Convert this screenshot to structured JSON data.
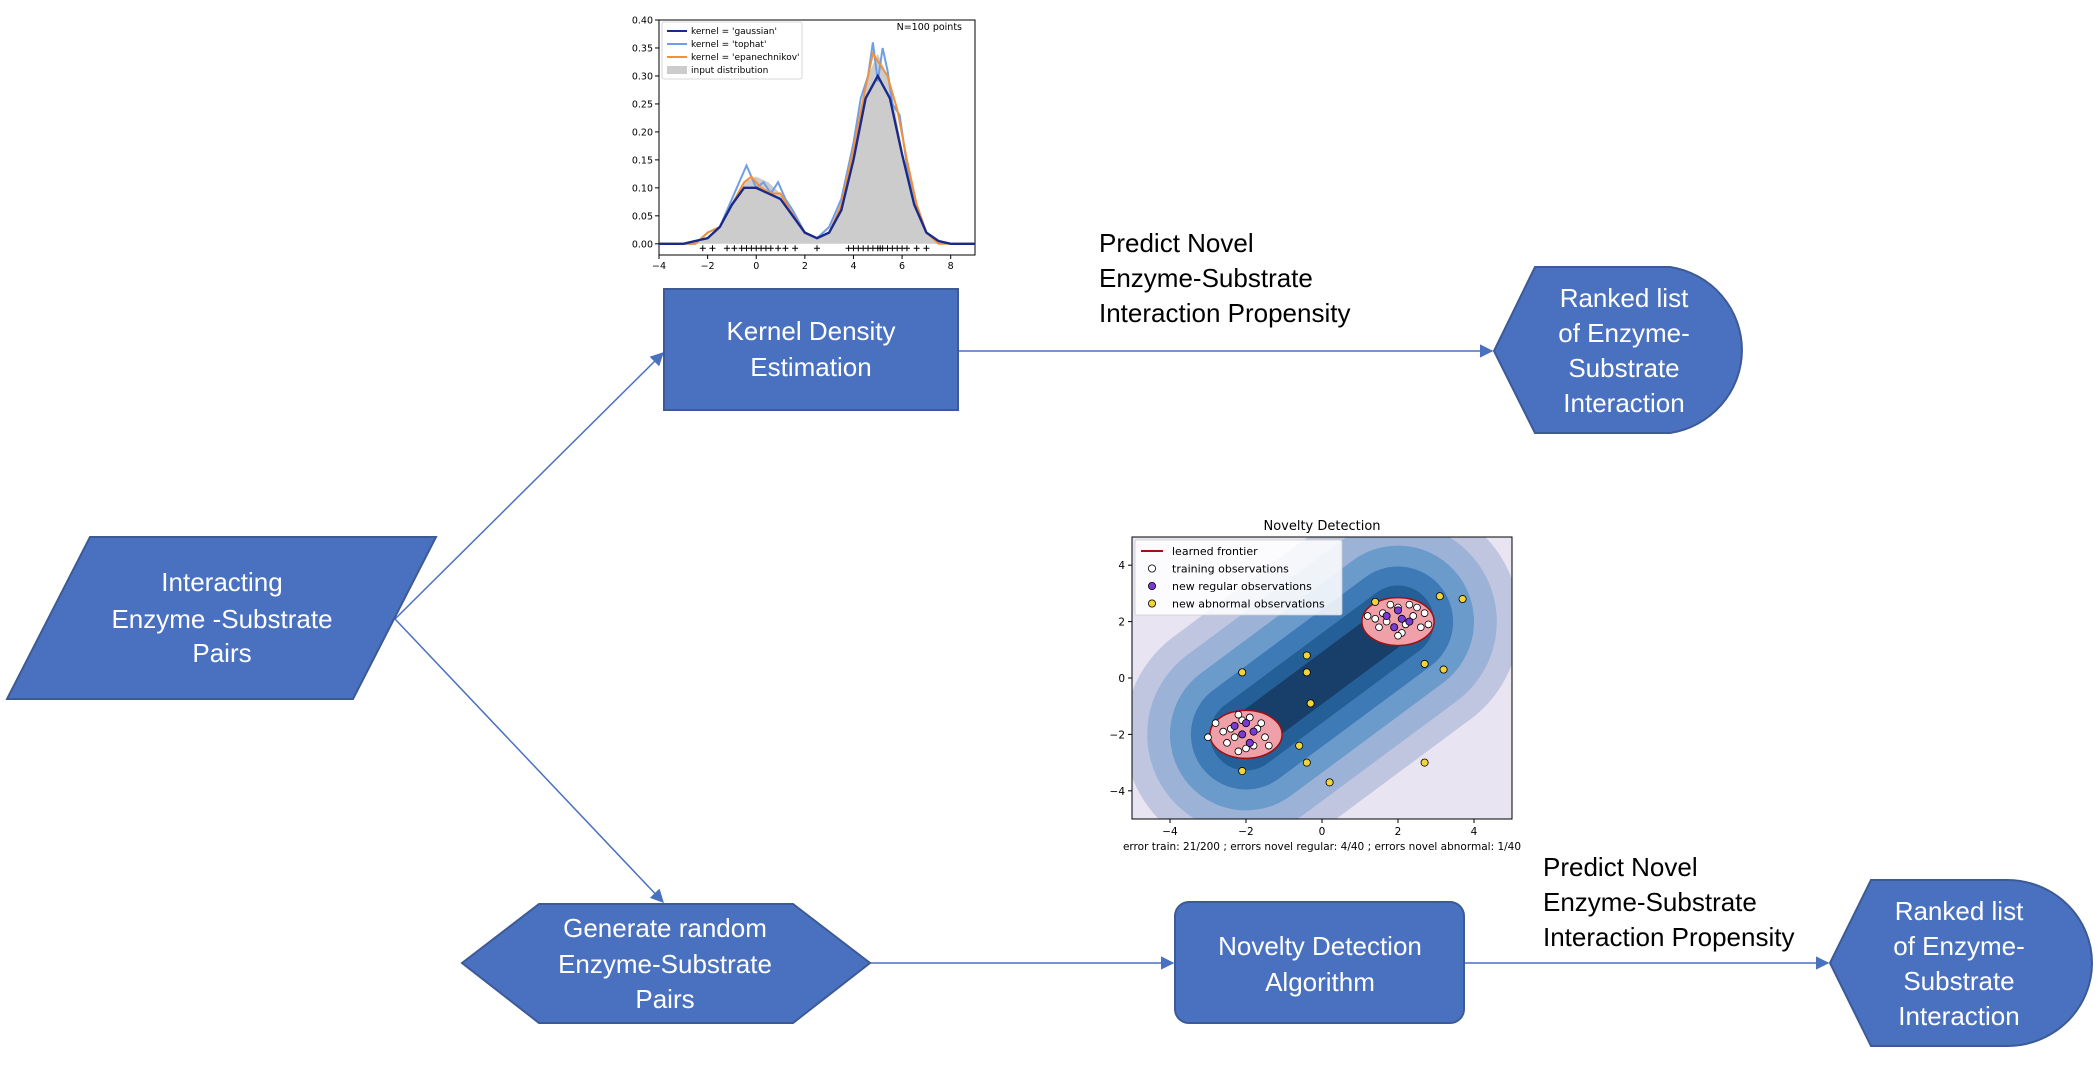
{
  "colors": {
    "shape_fill": "#4a71c0",
    "shape_stroke": "#3c5a96",
    "arrow": "#4a71c0",
    "shape_text": "#ffffff"
  },
  "flowchart": {
    "input": {
      "lines": [
        "Interacting",
        "Enzyme -Substrate",
        "Pairs"
      ]
    },
    "kde_box": {
      "lines": [
        "Kernel Density",
        "Estimation"
      ]
    },
    "generate": {
      "lines": [
        "Generate random",
        "Enzyme-Substrate",
        "Pairs"
      ]
    },
    "novelty_box": {
      "lines": [
        "Novelty Detection",
        "Algorithm"
      ]
    },
    "ranked_top": {
      "lines": [
        "Ranked list",
        "of Enzyme-",
        "Substrate",
        "Interaction"
      ]
    },
    "ranked_bottom": {
      "lines": [
        "Ranked list",
        "of Enzyme-",
        "Substrate",
        "Interaction"
      ]
    },
    "predict_top": {
      "lines": [
        "Predict Novel",
        "Enzyme-Substrate",
        "Interaction Propensity"
      ]
    },
    "predict_bottom": {
      "lines": [
        "Predict Novel",
        "Enzyme-Substrate",
        "Interaction Propensity"
      ]
    }
  },
  "chart_data": [
    {
      "type": "line",
      "annotation": "N=100 points",
      "xlim": [
        -4,
        9
      ],
      "ylim": [
        -0.02,
        0.4
      ],
      "xticks": [
        "−4",
        "−2",
        "0",
        "2",
        "4",
        "6",
        "8"
      ],
      "yticks": [
        "0.00",
        "0.05",
        "0.10",
        "0.15",
        "0.20",
        "0.25",
        "0.30",
        "0.35",
        "0.40"
      ],
      "legend": [
        "kernel = 'gaussian'",
        "kernel = 'tophat'",
        "kernel = 'epanechnikov'",
        "input distribution"
      ],
      "legend_colors": [
        "#1a2a8a",
        "#6f9ee6",
        "#f29138",
        "#cccccc"
      ],
      "series": [
        {
          "name": "kernel = 'gaussian'",
          "x": [
            -4,
            -3,
            -2,
            -1.5,
            -1,
            -0.5,
            0,
            0.5,
            1,
            1.5,
            2,
            2.5,
            3,
            3.5,
            4,
            4.5,
            5,
            5.5,
            6,
            6.5,
            7,
            7.5,
            8,
            9
          ],
          "y": [
            0.0,
            0.0,
            0.01,
            0.03,
            0.07,
            0.1,
            0.1,
            0.09,
            0.08,
            0.05,
            0.02,
            0.01,
            0.02,
            0.06,
            0.15,
            0.26,
            0.3,
            0.26,
            0.16,
            0.07,
            0.02,
            0.005,
            0.0,
            0.0
          ]
        },
        {
          "name": "kernel = 'tophat'",
          "x": [
            -4,
            -2.5,
            -2,
            -1.5,
            -1,
            -0.7,
            -0.4,
            -0.2,
            0,
            0.3,
            0.6,
            0.9,
            1.2,
            1.5,
            2,
            2.5,
            3,
            3.5,
            4,
            4.3,
            4.6,
            4.8,
            5,
            5.2,
            5.4,
            5.6,
            5.9,
            6.2,
            6.6,
            7,
            7.5,
            8,
            9
          ],
          "y": [
            0.0,
            0.0,
            0.02,
            0.03,
            0.08,
            0.11,
            0.14,
            0.12,
            0.1,
            0.11,
            0.09,
            0.11,
            0.08,
            0.06,
            0.02,
            0.01,
            0.03,
            0.08,
            0.18,
            0.26,
            0.3,
            0.36,
            0.29,
            0.35,
            0.31,
            0.25,
            0.23,
            0.14,
            0.07,
            0.02,
            0.005,
            0.0,
            0.0
          ]
        },
        {
          "name": "kernel = 'epanechnikov'",
          "x": [
            -4,
            -2.5,
            -2,
            -1.5,
            -1,
            -0.5,
            -0.2,
            0.2,
            0.6,
            1,
            1.4,
            2,
            2.5,
            3,
            3.5,
            4,
            4.5,
            4.8,
            5.1,
            5.4,
            5.8,
            6.2,
            6.6,
            7,
            7.5,
            8,
            9
          ],
          "y": [
            0.0,
            0.0,
            0.02,
            0.03,
            0.07,
            0.11,
            0.12,
            0.1,
            0.09,
            0.09,
            0.06,
            0.02,
            0.01,
            0.02,
            0.07,
            0.17,
            0.28,
            0.34,
            0.32,
            0.3,
            0.24,
            0.15,
            0.07,
            0.02,
            0.0,
            0.0,
            0.0
          ]
        },
        {
          "name": "input distribution",
          "x": [
            -4,
            -2.5,
            -2,
            -1.5,
            -1,
            -0.5,
            0,
            0.5,
            1,
            1.5,
            2,
            2.5,
            3,
            3.5,
            4,
            4.5,
            5,
            5.5,
            6,
            6.5,
            7,
            7.5,
            8,
            9
          ],
          "y": [
            0.0,
            0.0,
            0.01,
            0.03,
            0.07,
            0.11,
            0.12,
            0.11,
            0.09,
            0.05,
            0.02,
            0.01,
            0.02,
            0.07,
            0.16,
            0.29,
            0.34,
            0.29,
            0.17,
            0.07,
            0.02,
            0.005,
            0.0,
            0.0
          ]
        }
      ],
      "rug_x": [
        -2.2,
        -1.8,
        -1.2,
        -0.9,
        -0.6,
        -0.4,
        -0.2,
        0.0,
        0.2,
        0.4,
        0.6,
        0.9,
        1.2,
        1.6,
        2.5,
        3.8,
        4.0,
        4.2,
        4.4,
        4.6,
        4.8,
        5.0,
        5.1,
        5.2,
        5.4,
        5.6,
        5.8,
        6.0,
        6.2,
        6.6,
        7.0
      ]
    },
    {
      "type": "scatter",
      "title": "Novelty Detection",
      "xlabel": "error train: 21/200 ; errors novel regular: 4/40 ; errors novel abnormal: 1/40",
      "xlim": [
        -5,
        5
      ],
      "ylim": [
        -5,
        5
      ],
      "xticks": [
        "−4",
        "−2",
        "0",
        "2",
        "4"
      ],
      "yticks": [
        "4",
        "2",
        "0",
        "−2",
        "−4"
      ],
      "legend": [
        "learned frontier",
        "training observations",
        "new regular observations",
        "new abnormal observations"
      ],
      "legend_colors": [
        "#a01010",
        "#ffffff",
        "#7a3ad8",
        "#f2d43a"
      ],
      "clusters": [
        {
          "cx": -2,
          "cy": -2
        },
        {
          "cx": 2,
          "cy": 2
        }
      ],
      "training_points": [
        [
          -2.4,
          -1.8
        ],
        [
          -2.1,
          -1.5
        ],
        [
          -1.7,
          -1.8
        ],
        [
          -2.5,
          -2.3
        ],
        [
          -1.8,
          -2.4
        ],
        [
          -2.2,
          -2.6
        ],
        [
          -1.5,
          -2.1
        ],
        [
          -2.6,
          -1.9
        ],
        [
          -1.9,
          -1.4
        ],
        [
          -2.3,
          -2.1
        ],
        [
          -1.6,
          -1.6
        ],
        [
          -2.0,
          -2.5
        ],
        [
          -2.8,
          -1.6
        ],
        [
          -3.0,
          -2.1
        ],
        [
          -1.4,
          -2.4
        ],
        [
          -2.2,
          -1.3
        ],
        [
          1.6,
          2.3
        ],
        [
          2.0,
          2.5
        ],
        [
          2.4,
          2.2
        ],
        [
          1.5,
          1.8
        ],
        [
          2.1,
          1.6
        ],
        [
          2.6,
          1.8
        ],
        [
          1.8,
          2.6
        ],
        [
          2.3,
          2.6
        ],
        [
          1.7,
          2.0
        ],
        [
          2.2,
          1.9
        ],
        [
          2.7,
          2.3
        ],
        [
          1.4,
          2.1
        ],
        [
          2.0,
          1.5
        ],
        [
          2.5,
          2.5
        ],
        [
          1.2,
          2.2
        ],
        [
          2.8,
          1.9
        ]
      ],
      "regular_points": [
        [
          -2.1,
          -2.0
        ],
        [
          -1.8,
          -1.9
        ],
        [
          -2.3,
          -1.7
        ],
        [
          -1.9,
          -2.3
        ],
        [
          -2.0,
          -1.6
        ],
        [
          2.1,
          2.1
        ],
        [
          1.9,
          1.8
        ],
        [
          2.3,
          2.0
        ],
        [
          2.0,
          2.4
        ],
        [
          1.7,
          2.2
        ]
      ],
      "abnormal_points": [
        [
          -2.1,
          0.2
        ],
        [
          -0.4,
          0.8
        ],
        [
          -0.4,
          0.2
        ],
        [
          -0.3,
          -0.9
        ],
        [
          -0.6,
          -2.4
        ],
        [
          -0.4,
          -3.0
        ],
        [
          0.2,
          -3.7
        ],
        [
          -2.1,
          -3.3
        ],
        [
          3.1,
          2.9
        ],
        [
          3.7,
          2.8
        ],
        [
          2.7,
          0.5
        ],
        [
          3.2,
          0.3
        ],
        [
          2.7,
          -3.0
        ],
        [
          1.4,
          2.7
        ]
      ]
    }
  ]
}
